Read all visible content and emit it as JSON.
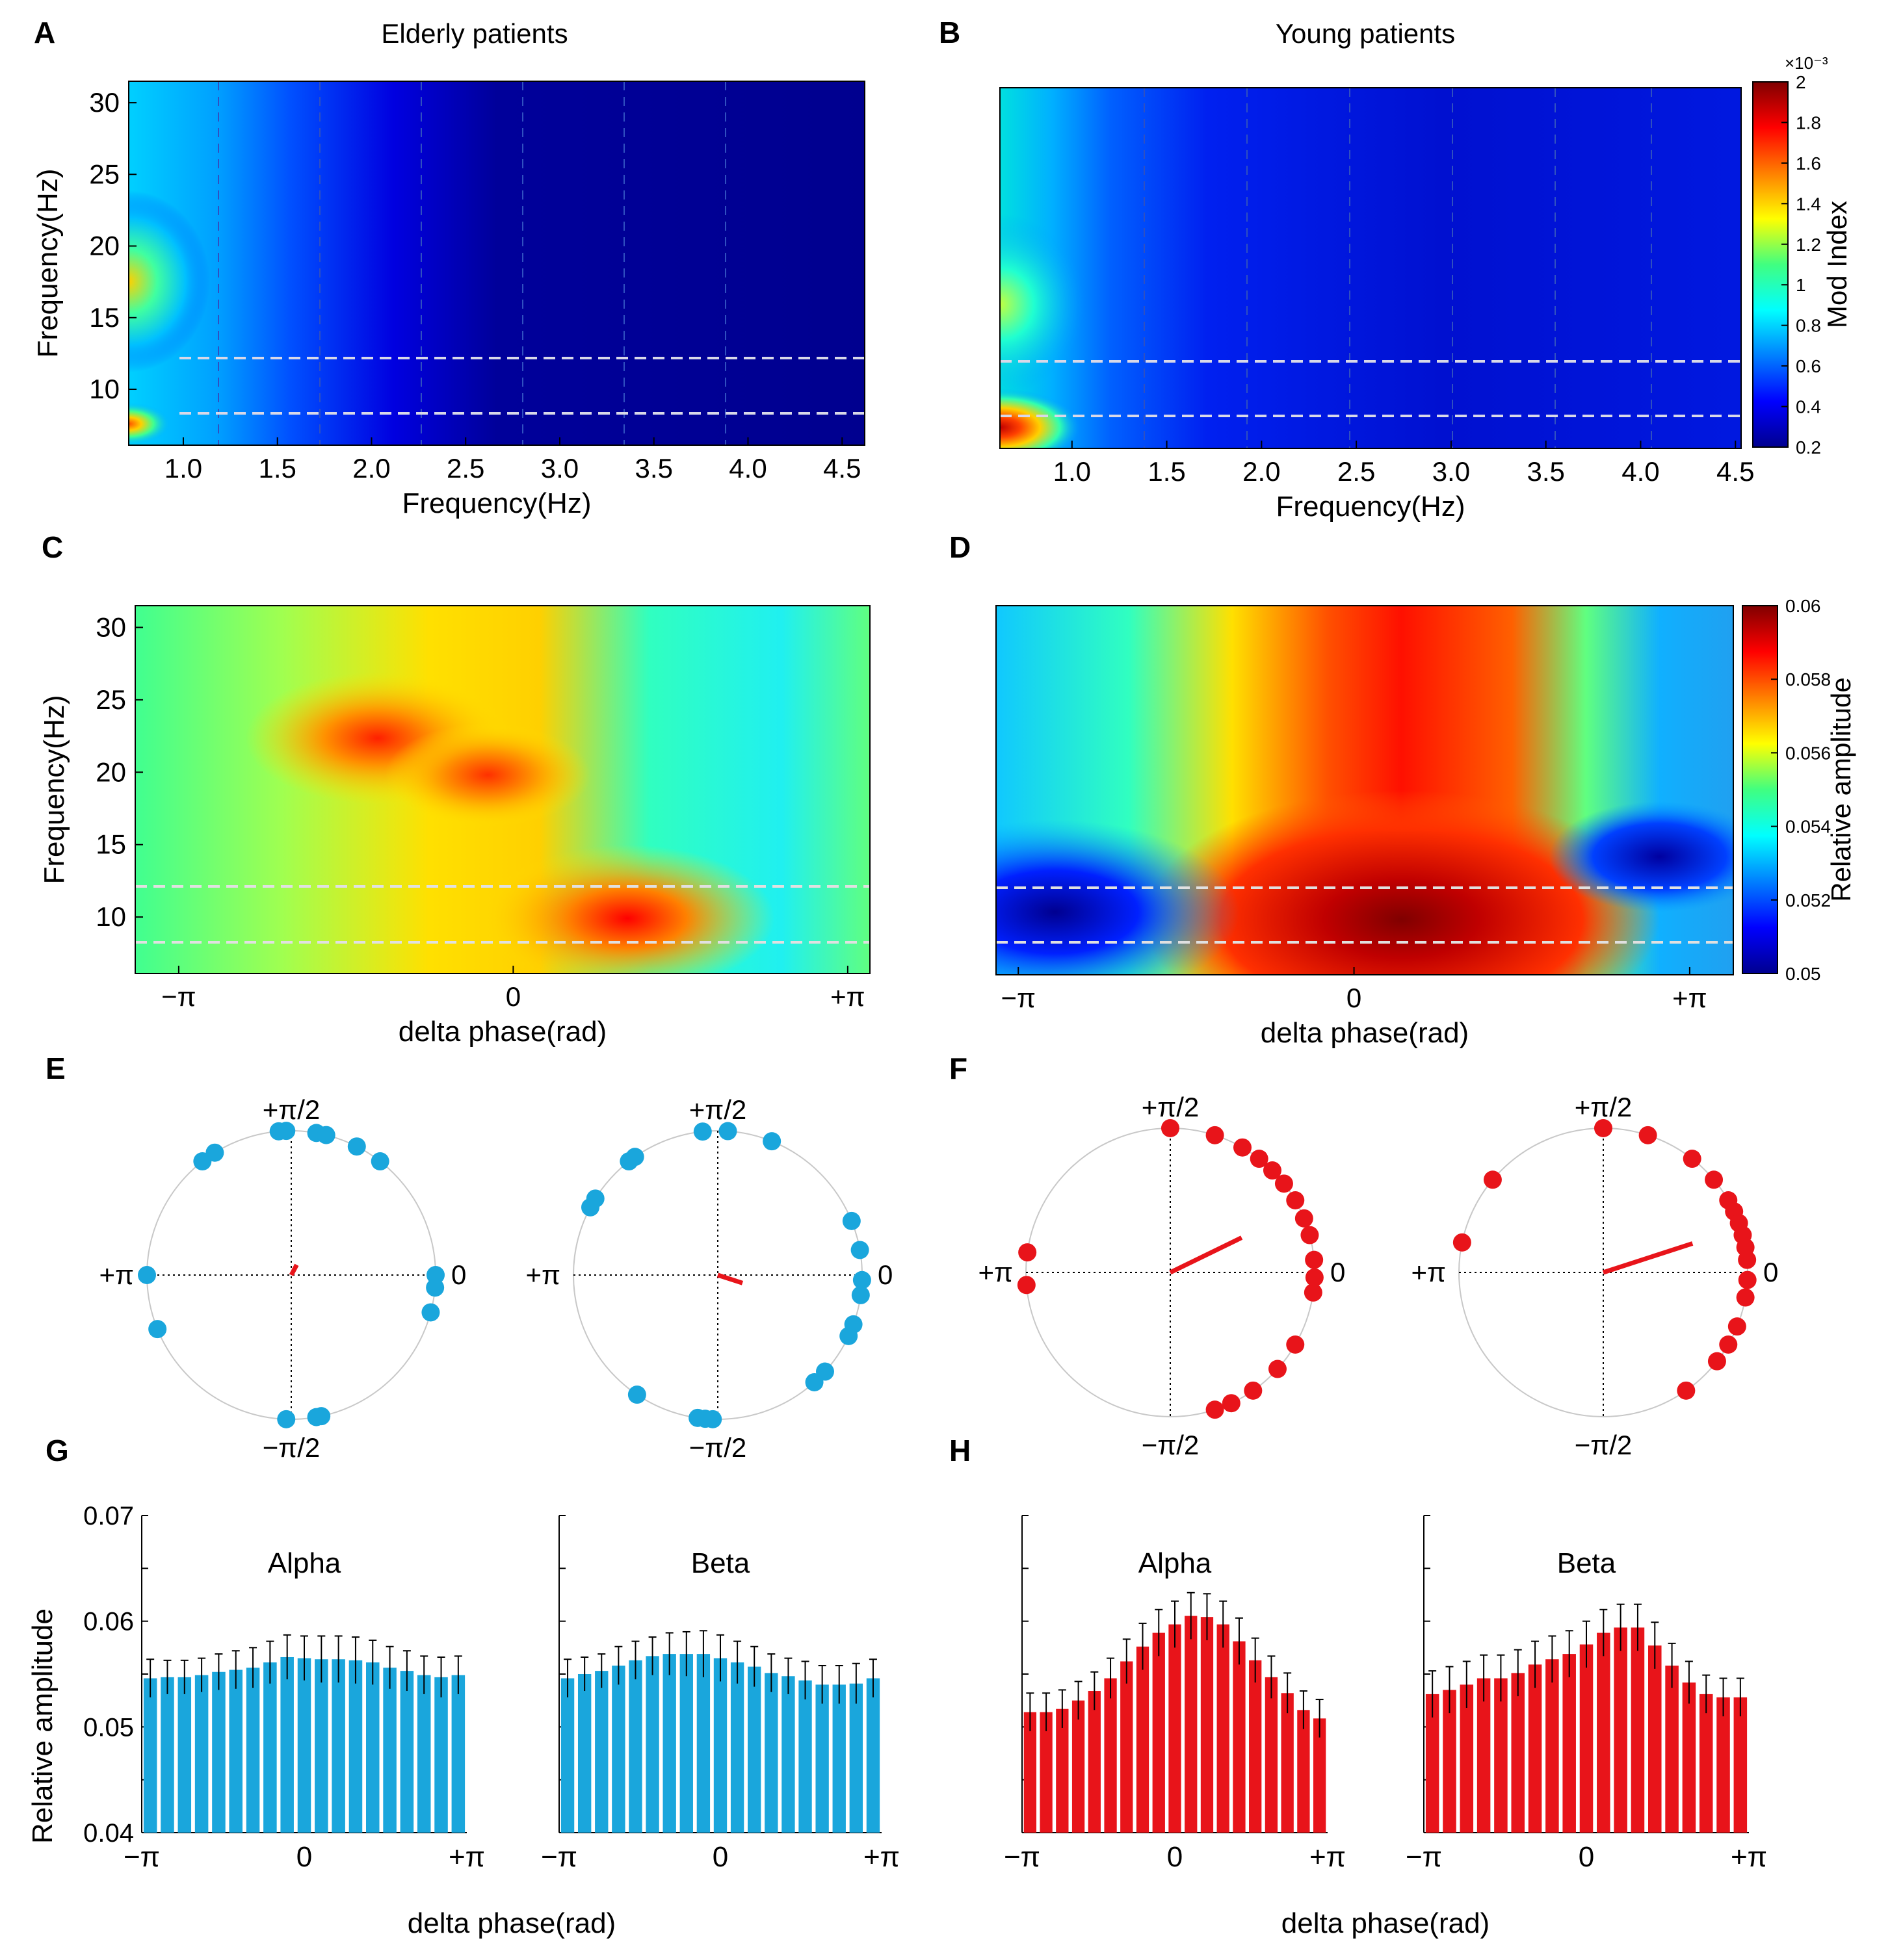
{
  "chart_data": [
    {
      "panel": "A",
      "type": "heatmap",
      "title": "Elderly patients",
      "xlabel": "Frequency(Hz)",
      "ylabel": "Frequency(Hz)",
      "xlim": [
        0.7,
        4.6
      ],
      "ylim": [
        6,
        31
      ],
      "xticks": [
        "1.0",
        "1.5",
        "2.0",
        "2.5",
        "3.0",
        "3.5",
        "4.0",
        "4.5"
      ],
      "yticks": [
        "10",
        "15",
        "20",
        "25",
        "30"
      ],
      "alpha_band_lines": [
        8,
        12
      ],
      "colorbar": {
        "label": "Mod Index",
        "scale": "×10⁻³",
        "ticks": [
          "0.2",
          "0.4",
          "0.6",
          "0.8",
          "1",
          "1.2",
          "1.4",
          "1.6",
          "1.8",
          "2"
        ],
        "range": [
          0.2,
          2.0
        ]
      }
    },
    {
      "panel": "B",
      "type": "heatmap",
      "title": "Young patients",
      "xlabel": "Frequency(Hz)",
      "ylabel": "",
      "xlim": [
        0.7,
        4.6
      ],
      "ylim": [
        6,
        31
      ],
      "xticks": [
        "1.0",
        "1.5",
        "2.0",
        "2.5",
        "3.0",
        "3.5",
        "4.0",
        "4.5"
      ],
      "alpha_band_lines": [
        8,
        12
      ]
    },
    {
      "panel": "C",
      "type": "heatmap",
      "xlabel": "delta phase(rad)",
      "ylabel": "Frequency(Hz)",
      "xticks": [
        "−π",
        "0",
        "+π"
      ],
      "yticks": [
        "10",
        "15",
        "20",
        "25",
        "30"
      ],
      "alpha_band_lines": [
        8,
        12
      ]
    },
    {
      "panel": "D",
      "type": "heatmap",
      "xlabel": "delta phase(rad)",
      "ylabel": "",
      "xticks": [
        "−π",
        "0",
        "+π"
      ],
      "alpha_band_lines": [
        8,
        12
      ],
      "colorbar": {
        "label": "Relative amplitude",
        "ticks": [
          "0.05",
          "0.052",
          "0.054",
          "0.056",
          "0.058",
          "0.06"
        ],
        "range": [
          0.05,
          0.06
        ]
      }
    },
    {
      "panel": "E",
      "type": "scatter",
      "subtype": "polar",
      "color": "#1aa6dc",
      "axis_labels": {
        "top": "+π/2",
        "bottom": "−π/2",
        "left": "+π",
        "right": "0"
      },
      "plots": [
        {
          "angles_deg": [
            95,
            92,
            80,
            76,
            63,
            52,
            128,
            122,
            180,
            202,
            0,
            355,
            345,
            268,
            280,
            282
          ],
          "mean_angle_deg": 62,
          "mean_length": 0.08
        },
        {
          "angles_deg": [
            128,
            125,
            96,
            86,
            68,
            22,
            10,
            358,
            352,
            340,
            335,
            318,
            312,
            265,
            268,
            262,
            236,
            152,
            148
          ],
          "mean_angle_deg": -18,
          "mean_length": 0.18
        }
      ]
    },
    {
      "panel": "F",
      "type": "scatter",
      "subtype": "polar",
      "color": "#e8141a",
      "axis_labels": {
        "top": "+π/2",
        "bottom": "−π/2",
        "left": "+π",
        "right": "0"
      },
      "plots": [
        {
          "angles_deg": [
            90,
            72,
            60,
            52,
            45,
            38,
            30,
            22,
            15,
            5,
            358,
            352,
            330,
            318,
            305,
            295,
            288,
            185,
            172
          ],
          "mean_angle_deg": 26,
          "mean_length": 0.55
        },
        {
          "angles_deg": [
            90,
            72,
            52,
            40,
            30,
            25,
            20,
            15,
            10,
            5,
            357,
            350,
            338,
            330,
            322,
            305,
            140,
            168
          ],
          "mean_angle_deg": 18,
          "mean_length": 0.65
        }
      ]
    },
    {
      "panel": "G",
      "type": "bar",
      "color": "#1aa6dc",
      "ylabel": "Relative amplitude",
      "xlabel": "delta phase(rad)",
      "ylim": [
        0.04,
        0.07
      ],
      "yticks": [
        "0.04",
        "0.05",
        "0.06",
        "0.07"
      ],
      "xticks": [
        "−π",
        "0",
        "+π"
      ],
      "plots": [
        {
          "title": "Alpha",
          "values": [
            0.0546,
            0.0547,
            0.0547,
            0.0549,
            0.0552,
            0.0554,
            0.0556,
            0.0561,
            0.0566,
            0.0565,
            0.0564,
            0.0564,
            0.0563,
            0.0561,
            0.0556,
            0.0553,
            0.0549,
            0.0547,
            0.0549
          ],
          "errors": [
            0.0018,
            0.0016,
            0.0016,
            0.0016,
            0.0017,
            0.0018,
            0.0019,
            0.002,
            0.0021,
            0.0021,
            0.0022,
            0.0022,
            0.0022,
            0.0021,
            0.002,
            0.0019,
            0.0018,
            0.0019,
            0.0018
          ]
        },
        {
          "title": "Beta",
          "values": [
            0.0546,
            0.055,
            0.0553,
            0.0558,
            0.0563,
            0.0567,
            0.0569,
            0.0569,
            0.0569,
            0.0565,
            0.0561,
            0.0557,
            0.0551,
            0.0548,
            0.0544,
            0.054,
            0.054,
            0.0541,
            0.0546
          ],
          "errors": [
            0.0018,
            0.0016,
            0.0016,
            0.0018,
            0.0018,
            0.0018,
            0.002,
            0.0021,
            0.0022,
            0.0022,
            0.002,
            0.0019,
            0.0018,
            0.0017,
            0.0018,
            0.0018,
            0.0018,
            0.0019,
            0.0018
          ]
        }
      ]
    },
    {
      "panel": "H",
      "type": "bar",
      "color": "#e8141a",
      "xlabel": "delta phase(rad)",
      "ylim": [
        0.04,
        0.07
      ],
      "xticks": [
        "−π",
        "0",
        "+π"
      ],
      "plots": [
        {
          "title": "Alpha",
          "values": [
            0.0514,
            0.0514,
            0.0517,
            0.0525,
            0.0534,
            0.0546,
            0.0562,
            0.0576,
            0.0589,
            0.0597,
            0.0605,
            0.0604,
            0.0597,
            0.0581,
            0.0563,
            0.0547,
            0.0532,
            0.0516,
            0.0508
          ],
          "errors": [
            0.0018,
            0.0018,
            0.0018,
            0.0018,
            0.0018,
            0.0019,
            0.0021,
            0.0022,
            0.0022,
            0.0022,
            0.0022,
            0.0022,
            0.0022,
            0.0022,
            0.0021,
            0.002,
            0.0019,
            0.0018,
            0.0018
          ]
        },
        {
          "title": "Beta",
          "values": [
            0.0531,
            0.0535,
            0.054,
            0.0546,
            0.0546,
            0.0551,
            0.0559,
            0.0564,
            0.0569,
            0.0578,
            0.0589,
            0.0594,
            0.0594,
            0.0577,
            0.0558,
            0.0542,
            0.0531,
            0.0528,
            0.0528
          ],
          "errors": [
            0.0022,
            0.0022,
            0.0022,
            0.0022,
            0.0022,
            0.0022,
            0.0022,
            0.0022,
            0.0022,
            0.0022,
            0.0022,
            0.0022,
            0.0022,
            0.0022,
            0.0021,
            0.002,
            0.0018,
            0.0018,
            0.0018
          ]
        }
      ]
    }
  ],
  "labels": {
    "A": "A",
    "B": "B",
    "C": "C",
    "D": "D",
    "E": "E",
    "F": "F",
    "G": "G",
    "H": "H"
  }
}
